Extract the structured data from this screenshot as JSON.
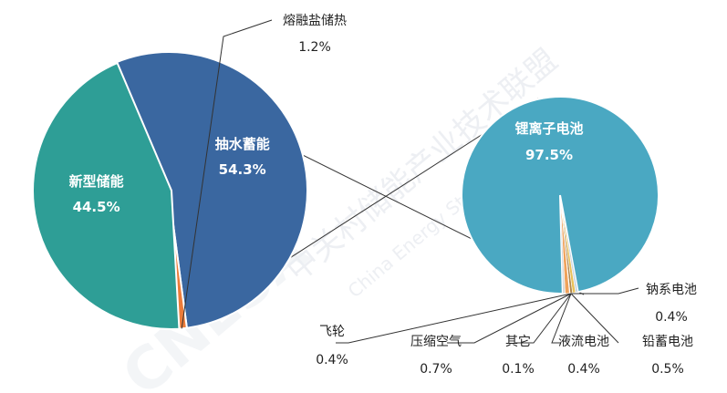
{
  "watermark": {
    "zh": "中关村储能产业技术联盟",
    "en": "China Energy Storage Alliance",
    "logo": "CNESA"
  },
  "chart_data": [
    {
      "type": "pie",
      "slices": [
        {
          "label": "抽水蓄能",
          "value": 54.3,
          "display": "54.3%",
          "color": "#3a67a0"
        },
        {
          "label": "熔融盐储热",
          "value": 1.2,
          "display": "1.2%",
          "color": "#ec7c3a"
        },
        {
          "label": "新型储能",
          "value": 44.5,
          "display": "44.5%",
          "color": "#2e9e96"
        }
      ]
    },
    {
      "type": "pie",
      "slices": [
        {
          "label": "锂离子电池",
          "value": 97.5,
          "display": "97.5%",
          "color": "#4aa8c2"
        },
        {
          "label": "钠系电池",
          "value": 0.4,
          "display": "0.4%",
          "color": "#c9d6e4"
        },
        {
          "label": "铅蓄电池",
          "value": 0.5,
          "display": "0.5%",
          "color": "#e8c15a"
        },
        {
          "label": "液流电池",
          "value": 0.4,
          "display": "0.4%",
          "color": "#b08850"
        },
        {
          "label": "其它",
          "value": 0.1,
          "display": "0.1%",
          "color": "#9bb7d8"
        },
        {
          "label": "压缩空气",
          "value": 0.7,
          "display": "0.7%",
          "color": "#f0a25a"
        },
        {
          "label": "飞轮",
          "value": 0.4,
          "display": "0.4%",
          "color": "#d9d9d9"
        }
      ]
    }
  ]
}
